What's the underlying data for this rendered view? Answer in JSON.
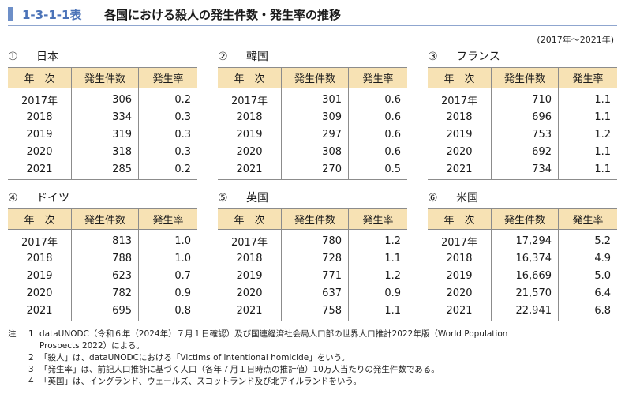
{
  "header": {
    "number": "1-3-1-1表",
    "title": "各国における殺人の発生件数・発生率の推移"
  },
  "period": "(2017年～2021年)",
  "columns": {
    "year": "年　次",
    "count": "発生件数",
    "rate": "発生率"
  },
  "countries": [
    {
      "num": "①",
      "name": "日本",
      "rows": [
        {
          "year": "2017年",
          "count": "306",
          "rate": "0.2"
        },
        {
          "year": "2018",
          "count": "334",
          "rate": "0.3"
        },
        {
          "year": "2019",
          "count": "319",
          "rate": "0.3"
        },
        {
          "year": "2020",
          "count": "318",
          "rate": "0.3"
        },
        {
          "year": "2021",
          "count": "285",
          "rate": "0.2"
        }
      ]
    },
    {
      "num": "②",
      "name": "韓国",
      "rows": [
        {
          "year": "2017年",
          "count": "301",
          "rate": "0.6"
        },
        {
          "year": "2018",
          "count": "309",
          "rate": "0.6"
        },
        {
          "year": "2019",
          "count": "297",
          "rate": "0.6"
        },
        {
          "year": "2020",
          "count": "308",
          "rate": "0.6"
        },
        {
          "year": "2021",
          "count": "270",
          "rate": "0.5"
        }
      ]
    },
    {
      "num": "③",
      "name": "フランス",
      "rows": [
        {
          "year": "2017年",
          "count": "710",
          "rate": "1.1"
        },
        {
          "year": "2018",
          "count": "696",
          "rate": "1.1"
        },
        {
          "year": "2019",
          "count": "753",
          "rate": "1.2"
        },
        {
          "year": "2020",
          "count": "692",
          "rate": "1.1"
        },
        {
          "year": "2021",
          "count": "734",
          "rate": "1.1"
        }
      ]
    },
    {
      "num": "④",
      "name": "ドイツ",
      "rows": [
        {
          "year": "2017年",
          "count": "813",
          "rate": "1.0"
        },
        {
          "year": "2018",
          "count": "788",
          "rate": "1.0"
        },
        {
          "year": "2019",
          "count": "623",
          "rate": "0.7"
        },
        {
          "year": "2020",
          "count": "782",
          "rate": "0.9"
        },
        {
          "year": "2021",
          "count": "695",
          "rate": "0.8"
        }
      ]
    },
    {
      "num": "⑤",
      "name": "英国",
      "rows": [
        {
          "year": "2017年",
          "count": "780",
          "rate": "1.2"
        },
        {
          "year": "2018",
          "count": "728",
          "rate": "1.1"
        },
        {
          "year": "2019",
          "count": "771",
          "rate": "1.2"
        },
        {
          "year": "2020",
          "count": "637",
          "rate": "0.9"
        },
        {
          "year": "2021",
          "count": "758",
          "rate": "1.1"
        }
      ]
    },
    {
      "num": "⑥",
      "name": "米国",
      "rows": [
        {
          "year": "2017年",
          "count": "17,294",
          "rate": "5.2"
        },
        {
          "year": "2018",
          "count": "16,374",
          "rate": "4.9"
        },
        {
          "year": "2019",
          "count": "16,669",
          "rate": "5.0"
        },
        {
          "year": "2020",
          "count": "21,570",
          "rate": "6.4"
        },
        {
          "year": "2021",
          "count": "22,941",
          "rate": "6.8"
        }
      ]
    }
  ],
  "notes": {
    "label": "注",
    "items": [
      {
        "num": "1",
        "text": "dataUNODC（令和６年（2024年）７月１日確認）及び国連経済社会局人口部の世界人口推計2022年版（World Population"
      },
      {
        "num": "",
        "text": "Prospects 2022）による。"
      },
      {
        "num": "2",
        "text": "「殺人」は、dataUNODCにおける「Victims of intentional homicide」をいう。"
      },
      {
        "num": "3",
        "text": "「発生率」は、前記人口推計に基づく人口（各年７月１日時点の推計値）10万人当たりの発生件数である。"
      },
      {
        "num": "4",
        "text": "「英国」は、イングランド、ウェールズ、スコットランド及び北アイルランドをいう。"
      }
    ]
  }
}
